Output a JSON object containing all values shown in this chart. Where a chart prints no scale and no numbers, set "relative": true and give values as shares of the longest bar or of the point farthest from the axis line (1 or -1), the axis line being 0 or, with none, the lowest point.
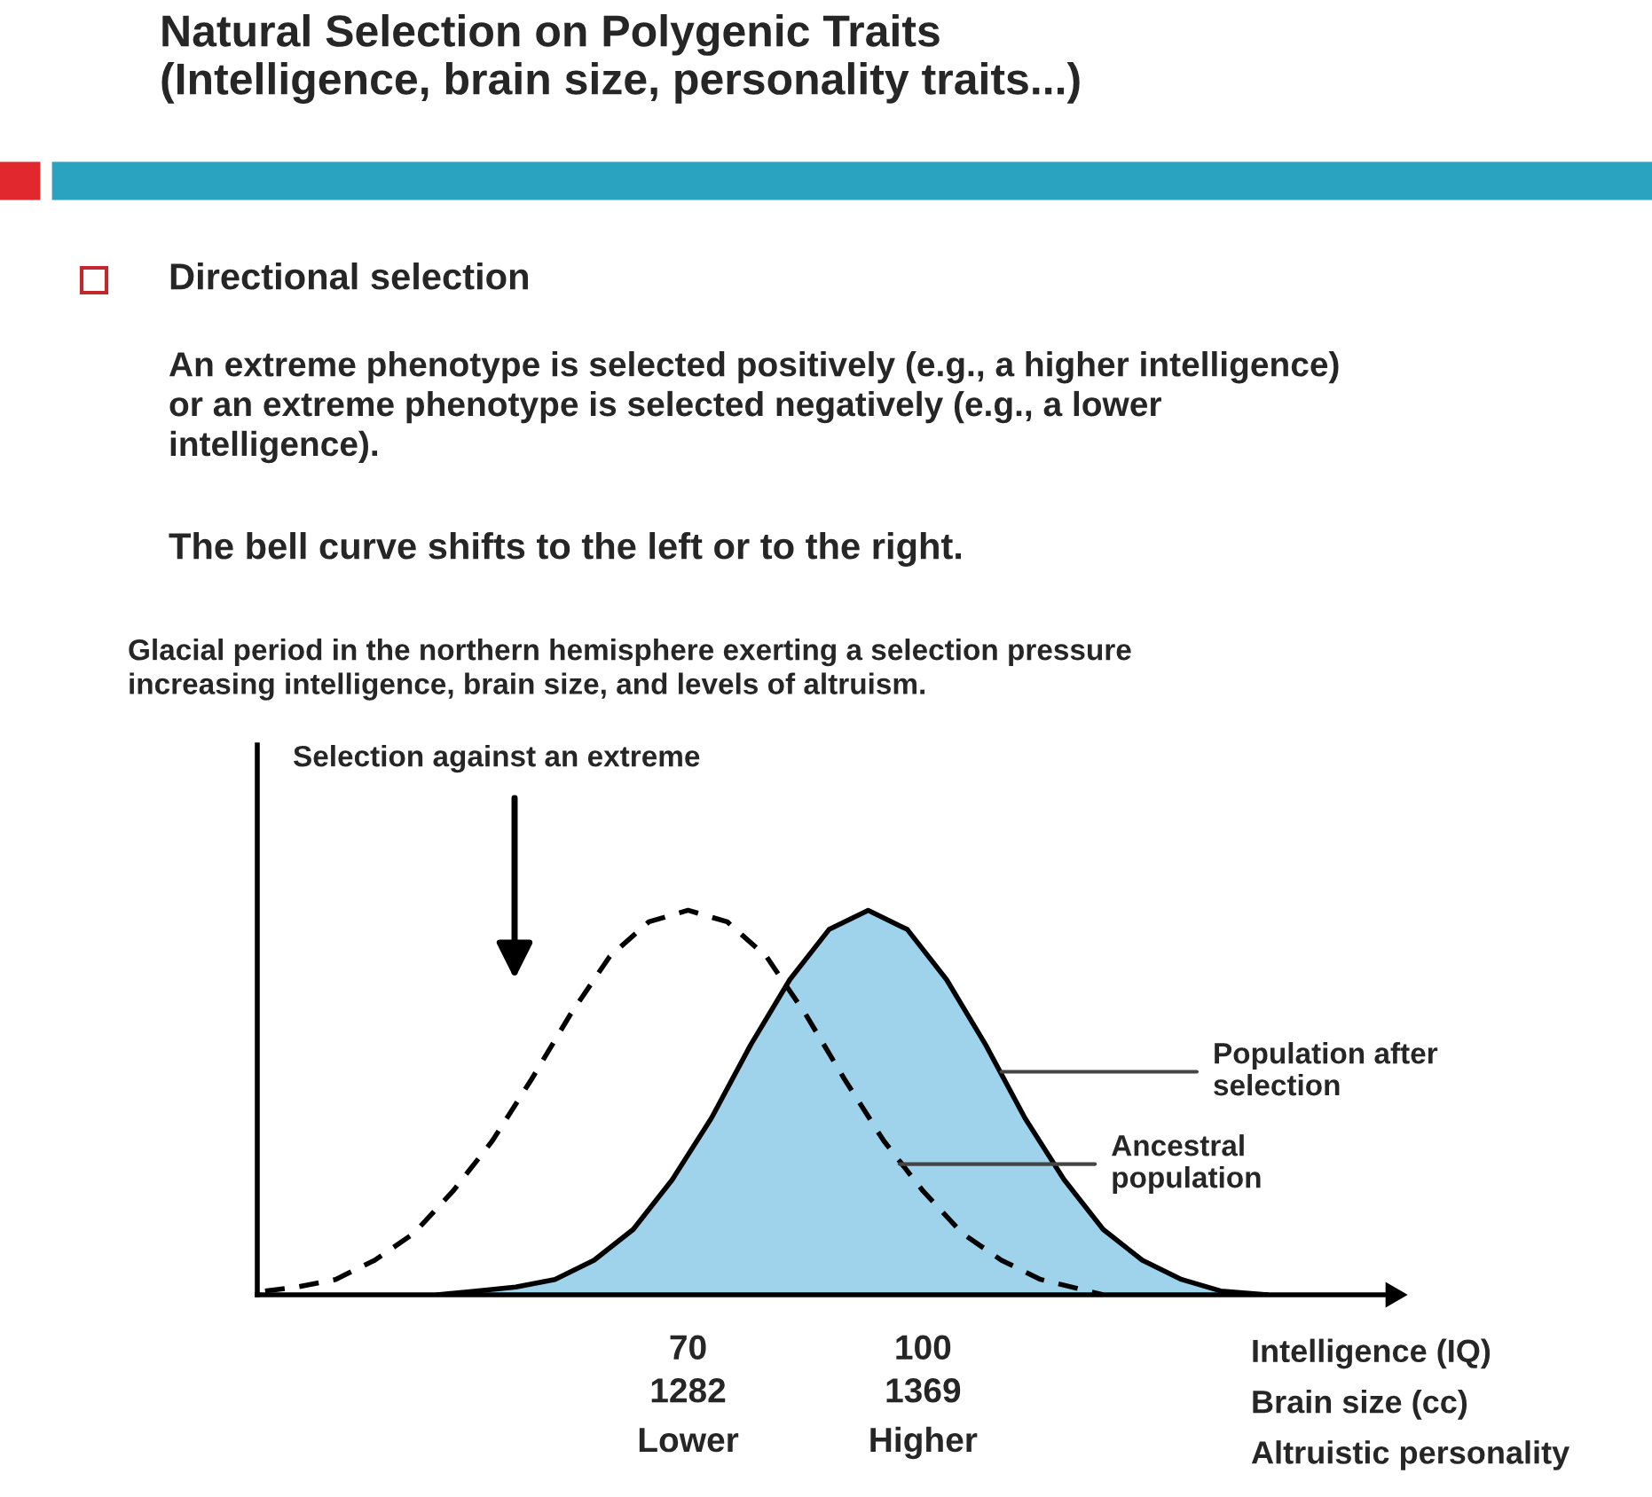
{
  "chart_data": {
    "type": "line",
    "title": "Natural Selection on Polygenic Traits\n(Intelligence, brain size, personality traits...)",
    "subtitle": "Directional selection",
    "annotations": [
      "An extreme phenotype is selected positively (e.g., a higher intelligence)\nor an extreme phenotype is selected negatively (e.g., a lower\nintelligence).",
      "The bell curve shifts to the left or to the right.",
      "Glacial period in the northern hemisphere exerting a selection pressure\nincreasing intelligence, brain size, and levels of altruism.",
      "Selection against an extreme",
      "1282",
      "1369",
      "Lower",
      "Higher",
      {
        "text": "Population after\nselection",
        "x": 110,
        "y": 0.58
      },
      {
        "text": "Ancestral\npopulation",
        "x": 97,
        "y": 0.34
      }
    ],
    "xlabel": "Intelligence (IQ)\nBrain size (cc)\nAltruistic personality",
    "relative": true,
    "xlim": [
      15,
      160
    ],
    "xticks": [
      70,
      100
    ],
    "series": [
      {
        "line_style": "dashed",
        "color": "#000000",
        "x": [
          16,
          20,
          25,
          30,
          35,
          40,
          45,
          50,
          55,
          60,
          65,
          70,
          75,
          80,
          85,
          90,
          95,
          100,
          105,
          110,
          115,
          123
        ],
        "values": [
          0.01,
          0.02,
          0.04,
          0.09,
          0.16,
          0.27,
          0.4,
          0.56,
          0.73,
          0.88,
          0.97,
          1.0,
          0.97,
          0.88,
          0.73,
          0.56,
          0.4,
          0.27,
          0.16,
          0.09,
          0.04,
          0
        ]
      },
      {
        "type": "area",
        "line_style": "solid",
        "color": "#9fd3ec",
        "x": [
          38,
          43,
          48,
          53,
          58,
          63,
          68,
          73,
          78,
          83,
          88,
          93,
          98,
          103,
          108,
          113,
          118,
          123,
          128,
          133,
          138,
          144
        ],
        "values": [
          0,
          0.01,
          0.02,
          0.04,
          0.09,
          0.17,
          0.3,
          0.46,
          0.65,
          0.82,
          0.95,
          1.0,
          0.95,
          0.82,
          0.65,
          0.46,
          0.3,
          0.17,
          0.09,
          0.04,
          0.01,
          0
        ]
      }
    ]
  }
}
